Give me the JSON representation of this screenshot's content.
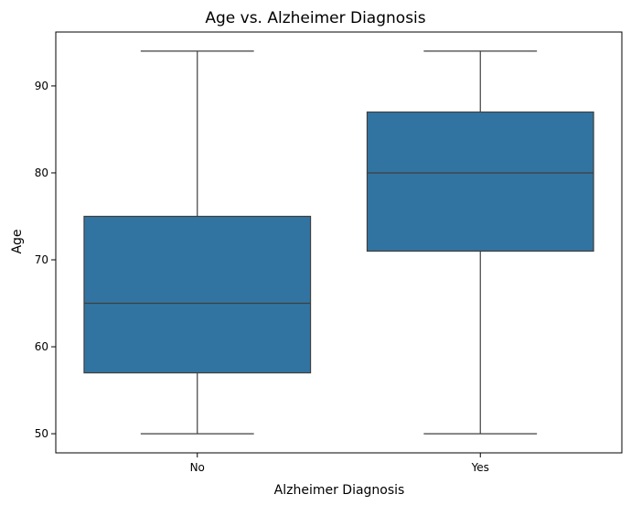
{
  "chart_data": {
    "type": "box",
    "title": "Age vs. Alzheimer Diagnosis",
    "xlabel": "Alzheimer Diagnosis",
    "ylabel": "Age",
    "categories": [
      "No",
      "Yes"
    ],
    "boxes": [
      {
        "category": "No",
        "min": 50,
        "q1": 57,
        "median": 65,
        "q3": 75,
        "max": 94
      },
      {
        "category": "Yes",
        "min": 50,
        "q1": 71,
        "median": 80,
        "q3": 87,
        "max": 94
      }
    ],
    "ylim": [
      47.8,
      96.2
    ],
    "yticks": [
      50,
      60,
      70,
      80,
      90
    ],
    "grid": false,
    "legend": "none",
    "colors": {
      "box_fill": "#3274a1",
      "line": "#3f3f3f",
      "axis": "#000000"
    }
  }
}
